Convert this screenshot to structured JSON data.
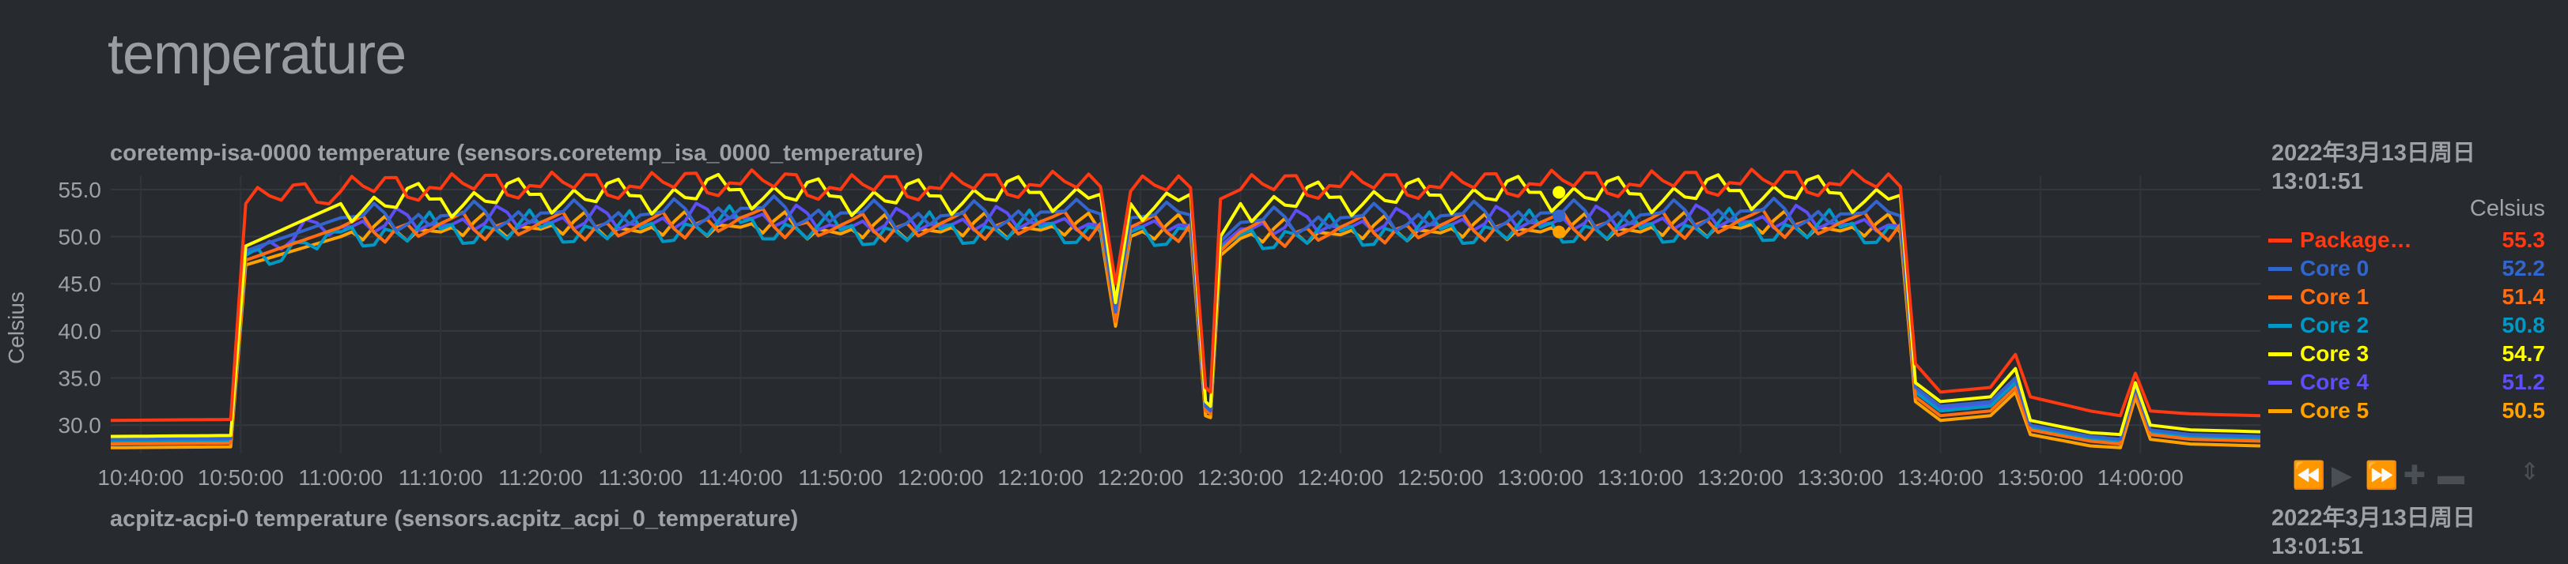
{
  "page": {
    "title": "temperature"
  },
  "charts": [
    {
      "title": "coretemp-isa-0000 temperature (sensors.coretemp_isa_0000_temperature)",
      "date": "2022年3月13日周日",
      "time": "13:01:51",
      "unit": "Celsius",
      "legend": [
        {
          "name": "Package…",
          "value": "55.3",
          "color": "#ff3912"
        },
        {
          "name": "Core 0",
          "value": "52.2",
          "color": "#3366cc"
        },
        {
          "name": "Core 1",
          "value": "51.4",
          "color": "#ff6d12"
        },
        {
          "name": "Core 2",
          "value": "50.8",
          "color": "#0099c6"
        },
        {
          "name": "Core 3",
          "value": "54.7",
          "color": "#ffff00"
        },
        {
          "name": "Core 4",
          "value": "51.2",
          "color": "#5d4ef5"
        },
        {
          "name": "Core 5",
          "value": "50.5",
          "color": "#ffa200"
        }
      ]
    },
    {
      "title": "acpitz-acpi-0 temperature (sensors.acpitz_acpi_0_temperature)",
      "date": "2022年3月13日周日",
      "time": "13:01:51"
    }
  ],
  "nav_icons": [
    "rewind-icon",
    "play-icon",
    "fast-forward-icon",
    "zoom-in-icon",
    "zoom-out-icon",
    "resize-icon"
  ],
  "chart_data": {
    "type": "line",
    "title": "coretemp-isa-0000 temperature (sensors.coretemp_isa_0000_temperature)",
    "ylabel": "Celsius",
    "xlabel": "",
    "ylim": [
      27,
      56.5
    ],
    "xlim": [
      "10:37:00",
      "14:12:00"
    ],
    "yticks": [
      30.0,
      35.0,
      40.0,
      45.0,
      50.0,
      55.0
    ],
    "xticks": [
      "10:40:00",
      "10:50:00",
      "11:00:00",
      "11:10:00",
      "11:20:00",
      "11:30:00",
      "11:40:00",
      "11:50:00",
      "12:00:00",
      "12:10:00",
      "12:20:00",
      "12:30:00",
      "12:40:00",
      "12:50:00",
      "13:00:00",
      "13:10:00",
      "13:20:00",
      "13:30:00",
      "13:40:00",
      "13:50:00",
      "14:00:00"
    ],
    "grid": true,
    "legend_position": "right",
    "x": [
      "10:37:00",
      "10:49:00",
      "10:50:30",
      "11:00:00",
      "11:10:00",
      "11:20:00",
      "11:30:00",
      "11:40:00",
      "11:50:00",
      "12:00:00",
      "12:10:00",
      "12:16:00",
      "12:17:30",
      "12:19:00",
      "12:25:00",
      "12:26:30",
      "12:27:00",
      "12:28:00",
      "12:30:00",
      "12:40:00",
      "12:50:00",
      "13:00:00",
      "13:10:00",
      "13:20:00",
      "13:30:00",
      "13:36:00",
      "13:37:30",
      "13:40:00",
      "13:45:00",
      "13:47:30",
      "13:49:00",
      "13:55:00",
      "13:58:00",
      "13:59:30",
      "14:01:00",
      "14:05:00",
      "14:12:00"
    ],
    "series": [
      {
        "name": "Package…",
        "values": [
          30.5,
          30.6,
          53.5,
          54.8,
          55.1,
          55.3,
          55.2,
          55.6,
          55.0,
          55.1,
          55.4,
          55.3,
          45.0,
          54.8,
          55.2,
          34.0,
          33.5,
          54.0,
          55.0,
          55.3,
          55.2,
          55.5,
          55.4,
          55.6,
          55.5,
          55.3,
          36.5,
          33.5,
          34.0,
          37.5,
          33.0,
          31.5,
          31.0,
          35.5,
          31.5,
          31.2,
          31.0
        ]
      },
      {
        "name": "Core 0",
        "values": [
          28.5,
          28.6,
          48.5,
          52.0,
          52.2,
          52.5,
          52.3,
          53.0,
          52.5,
          52.2,
          52.6,
          52.4,
          42.0,
          52.0,
          52.3,
          32.0,
          31.5,
          49.5,
          51.5,
          52.0,
          52.2,
          52.5,
          52.3,
          52.7,
          52.4,
          52.2,
          34.0,
          32.0,
          32.5,
          35.0,
          30.0,
          28.8,
          28.5,
          34.0,
          29.5,
          29.0,
          28.8
        ]
      },
      {
        "name": "Core 1",
        "values": [
          28.0,
          28.1,
          47.5,
          51.0,
          51.4,
          51.5,
          51.3,
          52.0,
          51.2,
          51.4,
          51.6,
          51.4,
          41.0,
          51.0,
          51.3,
          31.5,
          31.2,
          48.5,
          50.5,
          51.0,
          51.2,
          51.5,
          51.4,
          51.8,
          51.5,
          51.3,
          33.0,
          31.0,
          31.5,
          34.0,
          29.5,
          28.3,
          28.0,
          33.5,
          29.0,
          28.5,
          28.3
        ]
      },
      {
        "name": "Core 2",
        "values": [
          28.2,
          28.3,
          48.0,
          50.5,
          50.8,
          51.0,
          50.9,
          51.5,
          50.7,
          50.8,
          51.0,
          50.8,
          41.5,
          50.5,
          50.8,
          31.8,
          31.4,
          48.8,
          50.2,
          50.6,
          50.8,
          51.0,
          50.9,
          51.2,
          51.0,
          50.8,
          33.5,
          31.5,
          32.0,
          34.5,
          29.8,
          28.5,
          28.2,
          33.8,
          29.2,
          28.8,
          28.6
        ]
      },
      {
        "name": "Core 3",
        "values": [
          28.8,
          28.9,
          49.0,
          53.5,
          54.0,
          54.5,
          54.3,
          55.0,
          54.2,
          54.3,
          54.7,
          54.5,
          43.0,
          53.5,
          54.5,
          32.5,
          32.0,
          50.0,
          53.5,
          54.2,
          54.4,
          54.7,
          54.5,
          54.9,
          54.6,
          54.4,
          34.5,
          32.5,
          33.0,
          36.0,
          30.5,
          29.2,
          29.0,
          34.5,
          30.0,
          29.5,
          29.3
        ]
      },
      {
        "name": "Core 4",
        "values": [
          28.4,
          28.5,
          48.2,
          51.0,
          51.2,
          51.5,
          51.2,
          52.0,
          51.0,
          51.2,
          51.4,
          51.2,
          41.8,
          51.0,
          51.2,
          31.6,
          31.3,
          49.0,
          50.8,
          51.0,
          51.2,
          51.4,
          51.3,
          51.6,
          51.3,
          51.1,
          33.8,
          31.8,
          32.2,
          34.8,
          29.6,
          28.6,
          28.4,
          33.6,
          29.3,
          28.9,
          28.7
        ]
      },
      {
        "name": "Core 5",
        "values": [
          27.6,
          27.7,
          47.0,
          50.0,
          50.5,
          50.8,
          50.5,
          51.0,
          50.3,
          50.5,
          50.7,
          50.5,
          40.5,
          50.0,
          50.5,
          31.0,
          30.8,
          48.0,
          49.8,
          50.2,
          50.4,
          50.5,
          50.5,
          50.9,
          50.6,
          50.4,
          32.5,
          30.5,
          31.0,
          33.5,
          29.0,
          27.8,
          27.6,
          33.0,
          28.5,
          28.0,
          27.8
        ]
      }
    ]
  }
}
